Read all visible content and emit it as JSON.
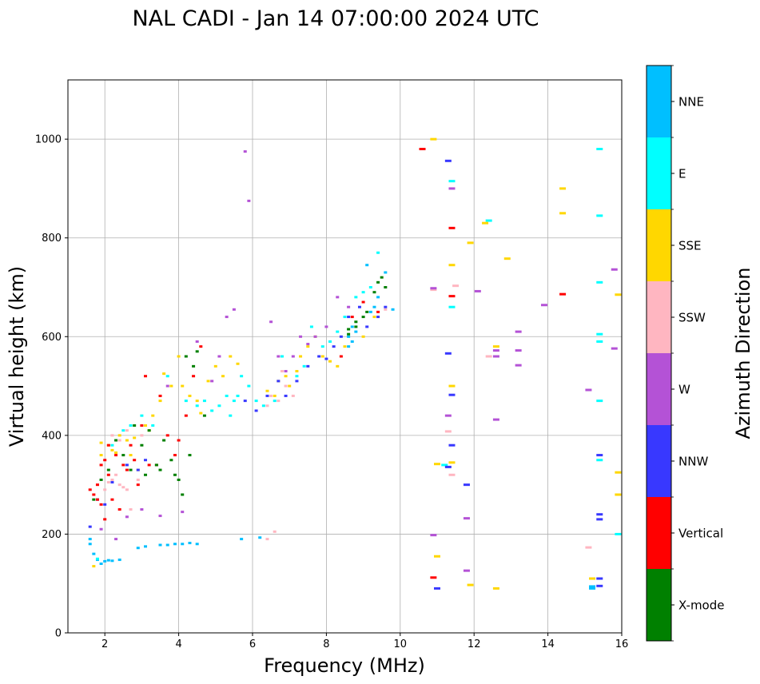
{
  "chart_data": {
    "type": "scatter",
    "title": "NAL CADI - Jan 14 07:00:00 2024 UTC",
    "xlabel": "Frequency (MHz)",
    "ylabel": "Virtual height (km)",
    "xlim": [
      1,
      16
    ],
    "ylim": [
      0,
      1120
    ],
    "xticks": [
      2,
      4,
      6,
      8,
      10,
      12,
      14,
      16
    ],
    "yticks": [
      0,
      200,
      400,
      600,
      800,
      1000
    ],
    "grid": true,
    "colorbar": {
      "label": "Azimuth Direction",
      "categories": [
        "X-mode",
        "Vertical",
        "NNW",
        "W",
        "SSW",
        "SSE",
        "E",
        "NNE"
      ],
      "colors": [
        "#008000",
        "#ff0000",
        "#3838ff",
        "#b452d6",
        "#ffb6c1",
        "#ffd700",
        "#00ffff",
        "#00bfff"
      ]
    },
    "series": [
      {
        "name": "NNE",
        "points": [
          [
            1.6,
            190
          ],
          [
            1.6,
            180
          ],
          [
            1.7,
            160
          ],
          [
            1.8,
            148
          ],
          [
            1.9,
            140
          ],
          [
            2.0,
            145
          ],
          [
            2.1,
            147
          ],
          [
            2.2,
            146
          ],
          [
            2.4,
            148
          ],
          [
            2.9,
            172
          ],
          [
            3.1,
            175
          ],
          [
            3.5,
            178
          ],
          [
            3.7,
            178
          ],
          [
            3.9,
            180
          ],
          [
            4.1,
            180
          ],
          [
            4.3,
            182
          ],
          [
            4.5,
            180
          ],
          [
            5.7,
            190
          ],
          [
            6.2,
            193
          ],
          [
            8.6,
            600
          ],
          [
            8.6,
            580
          ],
          [
            8.7,
            590
          ],
          [
            8.7,
            620
          ],
          [
            8.8,
            610
          ],
          [
            9.2,
            650
          ],
          [
            9.3,
            660
          ],
          [
            9.6,
            730
          ],
          [
            9.1,
            745
          ],
          [
            9.4,
            680
          ],
          [
            9.8,
            655
          ],
          [
            15.2,
            90
          ],
          [
            15.2,
            94
          ]
        ]
      },
      {
        "name": "E",
        "points": [
          [
            1.8,
            150
          ],
          [
            2.2,
            380
          ],
          [
            2.5,
            410
          ],
          [
            2.7,
            420
          ],
          [
            3.0,
            440
          ],
          [
            3.3,
            420
          ],
          [
            3.7,
            520
          ],
          [
            4.2,
            470
          ],
          [
            4.5,
            460
          ],
          [
            4.7,
            470
          ],
          [
            4.9,
            450
          ],
          [
            5.1,
            460
          ],
          [
            5.3,
            480
          ],
          [
            5.4,
            440
          ],
          [
            5.5,
            470
          ],
          [
            5.6,
            480
          ],
          [
            5.7,
            520
          ],
          [
            5.9,
            500
          ],
          [
            6.1,
            470
          ],
          [
            6.3,
            460
          ],
          [
            6.6,
            470
          ],
          [
            6.8,
            560
          ],
          [
            7.2,
            520
          ],
          [
            7.4,
            540
          ],
          [
            7.6,
            620
          ],
          [
            7.9,
            580
          ],
          [
            8.1,
            590
          ],
          [
            8.3,
            610
          ],
          [
            8.5,
            640
          ],
          [
            8.8,
            680
          ],
          [
            9.0,
            690
          ],
          [
            9.2,
            700
          ],
          [
            9.4,
            770
          ],
          [
            11.2,
            340
          ],
          [
            11.4,
            660
          ],
          [
            11.4,
            915
          ],
          [
            12.4,
            835
          ],
          [
            15.4,
            980
          ],
          [
            15.4,
            845
          ],
          [
            15.4,
            710
          ],
          [
            15.4,
            605
          ],
          [
            15.4,
            590
          ],
          [
            15.4,
            470
          ],
          [
            15.4,
            350
          ],
          [
            15.9,
            200
          ]
        ]
      },
      {
        "name": "SSE",
        "points": [
          [
            1.7,
            135
          ],
          [
            1.9,
            360
          ],
          [
            1.9,
            385
          ],
          [
            2.1,
            380
          ],
          [
            2.2,
            370
          ],
          [
            2.3,
            365
          ],
          [
            2.4,
            400
          ],
          [
            2.6,
            390
          ],
          [
            2.7,
            360
          ],
          [
            2.8,
            395
          ],
          [
            2.9,
            330
          ],
          [
            3.1,
            420
          ],
          [
            3.2,
            410
          ],
          [
            3.3,
            440
          ],
          [
            3.5,
            470
          ],
          [
            3.6,
            525
          ],
          [
            3.8,
            500
          ],
          [
            4.0,
            560
          ],
          [
            4.1,
            500
          ],
          [
            4.3,
            480
          ],
          [
            4.5,
            470
          ],
          [
            4.6,
            445
          ],
          [
            4.8,
            510
          ],
          [
            5.0,
            540
          ],
          [
            5.2,
            520
          ],
          [
            5.4,
            560
          ],
          [
            5.6,
            545
          ],
          [
            6.4,
            490
          ],
          [
            6.6,
            480
          ],
          [
            6.7,
            510
          ],
          [
            6.9,
            520
          ],
          [
            7.0,
            500
          ],
          [
            7.2,
            530
          ],
          [
            7.3,
            560
          ],
          [
            7.5,
            580
          ],
          [
            7.7,
            600
          ],
          [
            7.9,
            560
          ],
          [
            8.1,
            550
          ],
          [
            8.3,
            540
          ],
          [
            8.5,
            580
          ],
          [
            9.0,
            600
          ],
          [
            9.3,
            640
          ],
          [
            10.9,
            1000
          ],
          [
            11.0,
            342
          ],
          [
            11.0,
            155
          ],
          [
            11.4,
            500
          ],
          [
            11.4,
            345
          ],
          [
            11.4,
            745
          ],
          [
            11.9,
            790
          ],
          [
            11.9,
            97
          ],
          [
            12.3,
            830
          ],
          [
            12.6,
            580
          ],
          [
            12.6,
            90
          ],
          [
            12.9,
            758
          ],
          [
            14.4,
            900
          ],
          [
            14.4,
            850
          ],
          [
            15.2,
            110
          ],
          [
            15.9,
            325
          ],
          [
            15.9,
            280
          ],
          [
            15.9,
            685
          ]
        ]
      },
      {
        "name": "SSW",
        "points": [
          [
            1.8,
            300
          ],
          [
            2.0,
            290
          ],
          [
            2.1,
            305
          ],
          [
            2.2,
            310
          ],
          [
            2.3,
            320
          ],
          [
            2.4,
            300
          ],
          [
            2.5,
            295
          ],
          [
            2.6,
            290
          ],
          [
            2.7,
            250
          ],
          [
            2.9,
            310
          ],
          [
            3.0,
            400
          ],
          [
            2.2,
            400
          ],
          [
            2.4,
            390
          ],
          [
            2.6,
            410
          ],
          [
            6.4,
            190
          ],
          [
            6.6,
            205
          ],
          [
            6.5,
            480
          ],
          [
            6.7,
            470
          ],
          [
            6.9,
            500
          ],
          [
            7.1,
            480
          ],
          [
            6.4,
            460
          ],
          [
            6.8,
            530
          ],
          [
            9.6,
            655
          ],
          [
            10.9,
            695
          ],
          [
            11.3,
            408
          ],
          [
            11.4,
            320
          ],
          [
            11.5,
            703
          ],
          [
            12.4,
            560
          ],
          [
            15.1,
            173
          ]
        ]
      },
      {
        "name": "W",
        "points": [
          [
            1.9,
            210
          ],
          [
            2.3,
            190
          ],
          [
            2.6,
            235
          ],
          [
            3.0,
            250
          ],
          [
            3.5,
            237
          ],
          [
            3.7,
            500
          ],
          [
            4.1,
            245
          ],
          [
            4.5,
            590
          ],
          [
            4.9,
            510
          ],
          [
            5.1,
            560
          ],
          [
            5.3,
            640
          ],
          [
            5.5,
            655
          ],
          [
            5.8,
            975
          ],
          [
            5.9,
            875
          ],
          [
            6.5,
            630
          ],
          [
            6.7,
            560
          ],
          [
            6.9,
            530
          ],
          [
            7.1,
            560
          ],
          [
            7.3,
            600
          ],
          [
            7.5,
            585
          ],
          [
            7.7,
            600
          ],
          [
            8.0,
            620
          ],
          [
            8.3,
            680
          ],
          [
            8.6,
            660
          ],
          [
            10.9,
            198
          ],
          [
            10.9,
            698
          ],
          [
            11.3,
            440
          ],
          [
            11.4,
            900
          ],
          [
            11.8,
            232
          ],
          [
            11.8,
            126
          ],
          [
            12.1,
            692
          ],
          [
            12.6,
            432
          ],
          [
            12.6,
            572
          ],
          [
            12.6,
            560
          ],
          [
            13.2,
            610
          ],
          [
            13.2,
            572
          ],
          [
            13.2,
            542
          ],
          [
            13.9,
            664
          ],
          [
            15.1,
            492
          ],
          [
            15.8,
            736
          ],
          [
            15.8,
            576
          ]
        ]
      },
      {
        "name": "NNW",
        "points": [
          [
            1.6,
            215
          ],
          [
            1.8,
            270
          ],
          [
            2.0,
            260
          ],
          [
            2.2,
            305
          ],
          [
            2.6,
            340
          ],
          [
            2.9,
            330
          ],
          [
            3.1,
            350
          ],
          [
            5.8,
            470
          ],
          [
            6.1,
            450
          ],
          [
            6.4,
            480
          ],
          [
            6.7,
            510
          ],
          [
            6.9,
            480
          ],
          [
            7.2,
            510
          ],
          [
            7.5,
            540
          ],
          [
            7.8,
            560
          ],
          [
            8.0,
            555
          ],
          [
            8.2,
            580
          ],
          [
            8.4,
            600
          ],
          [
            8.6,
            640
          ],
          [
            8.9,
            660
          ],
          [
            9.1,
            620
          ],
          [
            9.4,
            640
          ],
          [
            9.6,
            660
          ],
          [
            11.0,
            90
          ],
          [
            11.3,
            956
          ],
          [
            11.3,
            566
          ],
          [
            11.3,
            336
          ],
          [
            11.4,
            380
          ],
          [
            11.4,
            482
          ],
          [
            11.8,
            300
          ],
          [
            15.4,
            360
          ],
          [
            15.4,
            240
          ],
          [
            15.4,
            230
          ],
          [
            15.4,
            110
          ],
          [
            15.4,
            95
          ]
        ]
      },
      {
        "name": "Vertical",
        "points": [
          [
            1.6,
            290
          ],
          [
            1.7,
            280
          ],
          [
            1.8,
            270
          ],
          [
            1.8,
            300
          ],
          [
            1.9,
            260
          ],
          [
            1.9,
            340
          ],
          [
            2.0,
            350
          ],
          [
            2.0,
            230
          ],
          [
            2.1,
            380
          ],
          [
            2.1,
            320
          ],
          [
            2.2,
            270
          ],
          [
            2.3,
            360
          ],
          [
            2.4,
            250
          ],
          [
            2.5,
            340
          ],
          [
            2.6,
            330
          ],
          [
            2.7,
            380
          ],
          [
            2.8,
            350
          ],
          [
            2.9,
            300
          ],
          [
            3.0,
            420
          ],
          [
            3.1,
            520
          ],
          [
            3.2,
            340
          ],
          [
            3.4,
            340
          ],
          [
            3.5,
            480
          ],
          [
            3.7,
            400
          ],
          [
            3.9,
            360
          ],
          [
            4.0,
            390
          ],
          [
            4.2,
            440
          ],
          [
            4.4,
            520
          ],
          [
            4.6,
            580
          ],
          [
            8.4,
            560
          ],
          [
            8.7,
            640
          ],
          [
            9.0,
            670
          ],
          [
            9.4,
            650
          ],
          [
            10.6,
            980
          ],
          [
            10.9,
            112
          ],
          [
            11.4,
            820
          ],
          [
            11.4,
            682
          ],
          [
            14.4,
            686
          ]
        ]
      },
      {
        "name": "X-mode",
        "points": [
          [
            1.7,
            270
          ],
          [
            1.9,
            310
          ],
          [
            2.1,
            330
          ],
          [
            2.3,
            390
          ],
          [
            2.5,
            360
          ],
          [
            2.7,
            330
          ],
          [
            2.8,
            420
          ],
          [
            3.0,
            380
          ],
          [
            3.1,
            320
          ],
          [
            3.2,
            410
          ],
          [
            3.4,
            340
          ],
          [
            3.5,
            330
          ],
          [
            3.6,
            390
          ],
          [
            3.8,
            350
          ],
          [
            3.9,
            320
          ],
          [
            4.0,
            310
          ],
          [
            4.1,
            280
          ],
          [
            4.2,
            560
          ],
          [
            4.3,
            360
          ],
          [
            4.4,
            540
          ],
          [
            4.5,
            570
          ],
          [
            4.7,
            440
          ],
          [
            8.6,
            615
          ],
          [
            8.6,
            605
          ],
          [
            8.8,
            620
          ],
          [
            8.8,
            630
          ],
          [
            9.0,
            640
          ],
          [
            9.1,
            650
          ],
          [
            9.3,
            690
          ],
          [
            9.4,
            710
          ],
          [
            9.5,
            720
          ],
          [
            9.6,
            700
          ]
        ]
      }
    ]
  }
}
